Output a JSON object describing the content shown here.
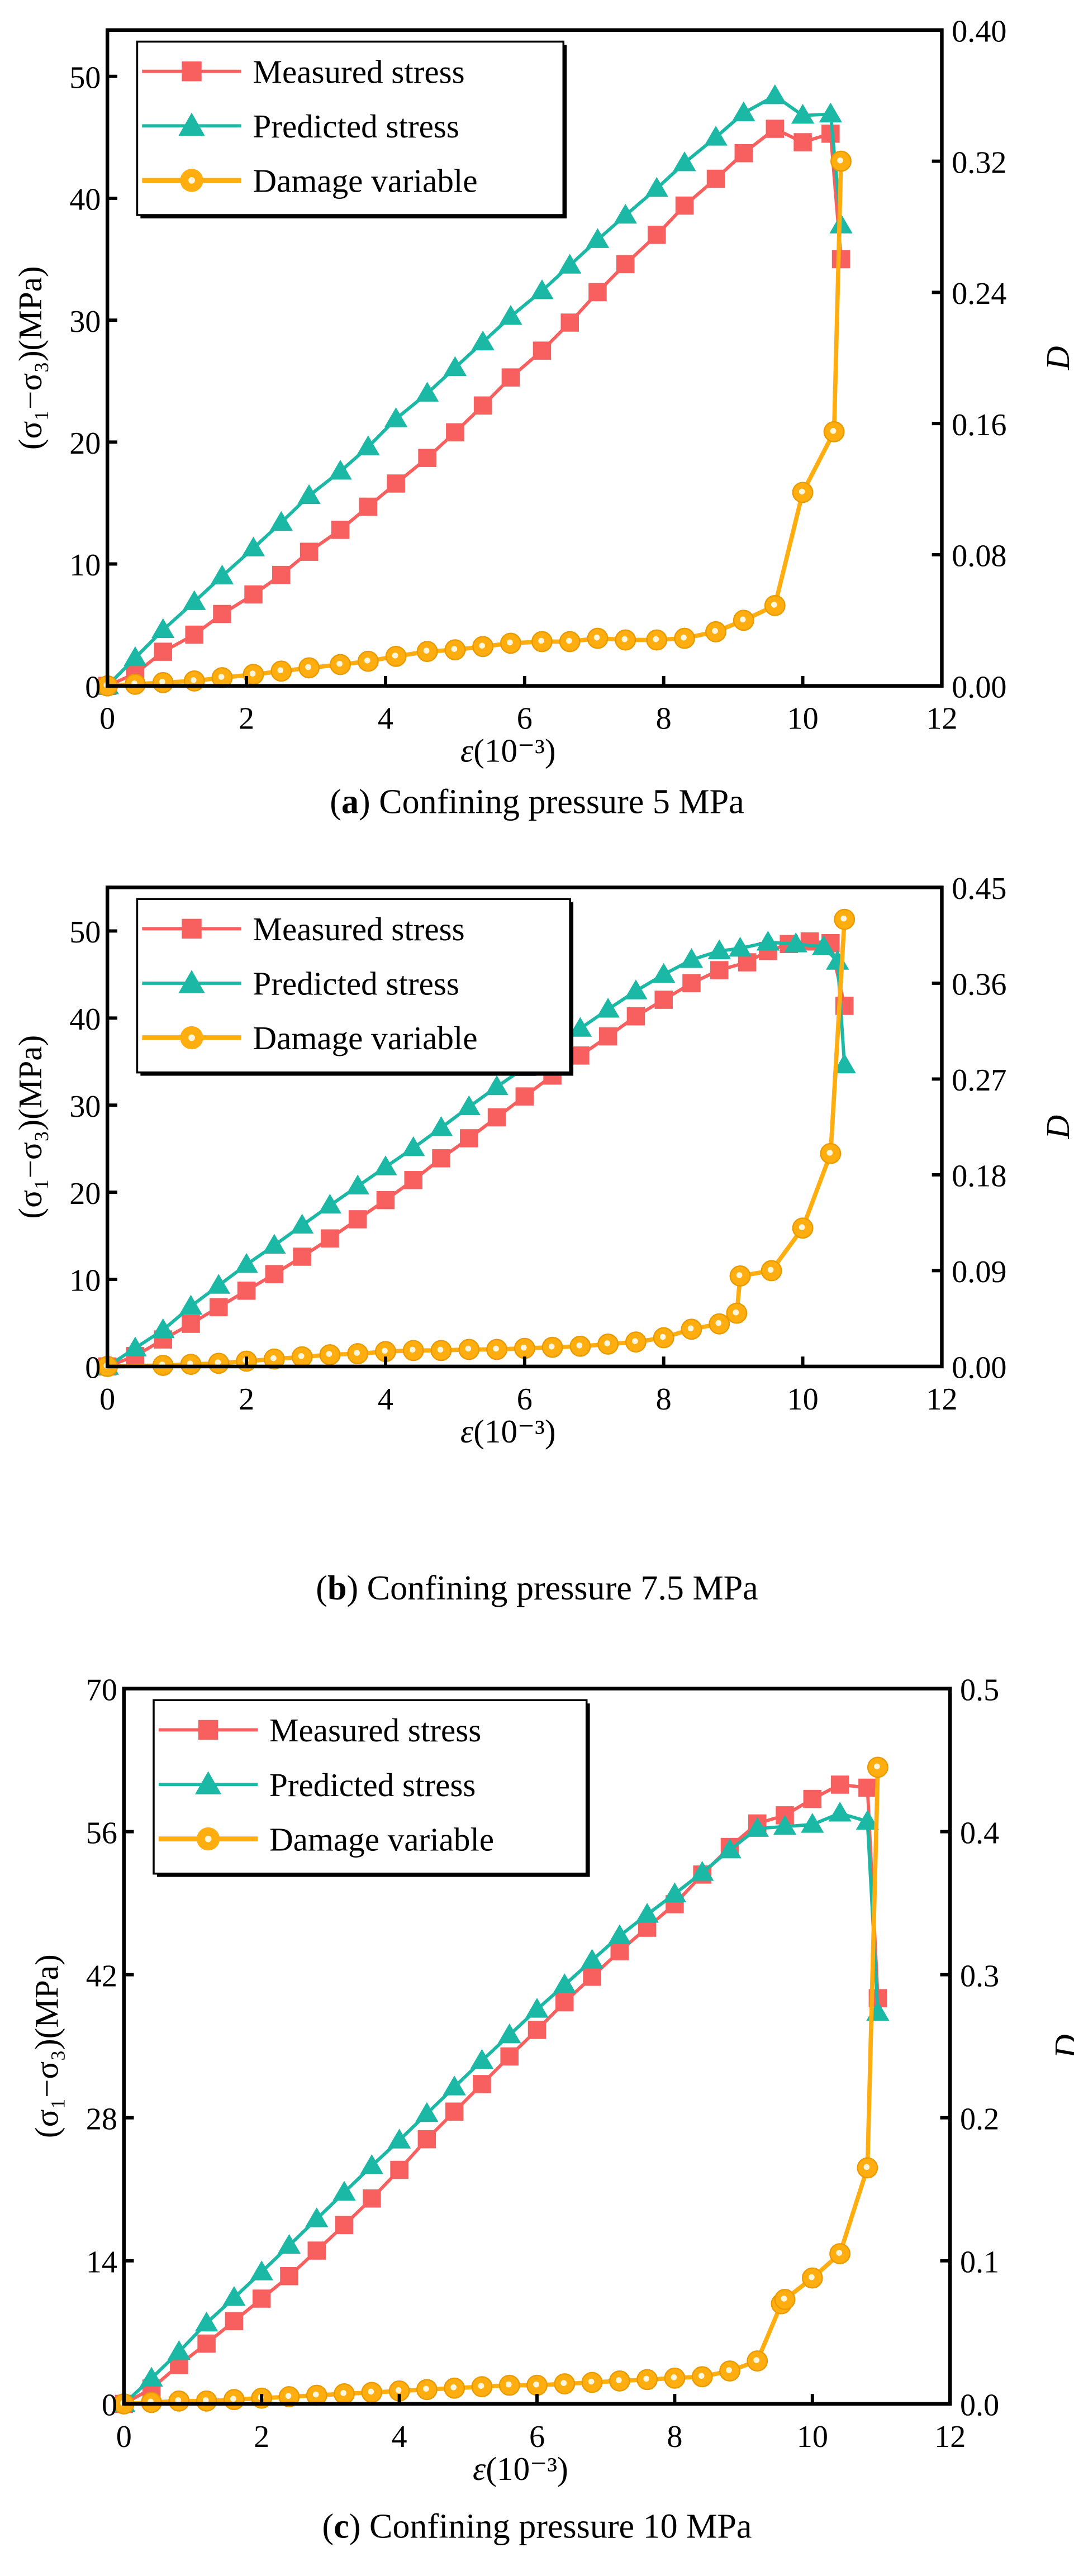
{
  "colors": {
    "measured": "#f8605f",
    "predicted": "#1cb8a6",
    "damage": "#ffad0f"
  },
  "chart_data": [
    {
      "type": "line",
      "caption_prefix": "(",
      "caption_letter": "a",
      "caption_rest": ") Confining pressure 5 MPa",
      "xlabel_sym": "ε",
      "xlabel_unit": "(10⁻³)",
      "ylabel": "(σ₁−σ₃)(MPa)",
      "y2label": "D",
      "xlim": [
        0,
        12
      ],
      "ylim": [
        0,
        53.8
      ],
      "y2lim": [
        0,
        0.4
      ],
      "xticks": [
        "0",
        "2",
        "4",
        "6",
        "8",
        "10",
        "12"
      ],
      "yticks": [
        "0",
        "10",
        "20",
        "30",
        "40",
        "50"
      ],
      "y2ticks": [
        "0.00",
        "0.08",
        "0.16",
        "0.24",
        "0.32",
        "0.40"
      ],
      "legend": [
        "Measured stress",
        "Predicted stress",
        "Damage variable"
      ],
      "legend_position": "top-left",
      "series": [
        {
          "name": "Measured stress",
          "axis": "left",
          "x": [
            0,
            0.4,
            0.8,
            1.25,
            1.65,
            2.1,
            2.5,
            2.9,
            3.35,
            3.75,
            4.15,
            4.6,
            5,
            5.4,
            5.8,
            6.25,
            6.65,
            7.05,
            7.45,
            7.9,
            8.3,
            8.75,
            9.15,
            9.6,
            10,
            10.4,
            10.55
          ],
          "y": [
            0,
            1,
            2.8,
            4.2,
            5.9,
            7.5,
            9.1,
            11,
            12.8,
            14.7,
            16.6,
            18.7,
            20.8,
            23,
            25.3,
            27.5,
            29.8,
            32.3,
            34.6,
            37,
            39.4,
            41.6,
            43.7,
            45.7,
            44.6,
            45.3,
            35
          ]
        },
        {
          "name": "Predicted stress",
          "axis": "left",
          "x": [
            0,
            0.4,
            0.8,
            1.25,
            1.65,
            2.1,
            2.5,
            2.9,
            3.35,
            3.75,
            4.15,
            4.6,
            5,
            5.4,
            5.8,
            6.25,
            6.65,
            7.05,
            7.45,
            7.9,
            8.3,
            8.75,
            9.15,
            9.6,
            10,
            10.4,
            10.55
          ],
          "y": [
            0,
            2.3,
            4.6,
            6.9,
            9,
            11.3,
            13.4,
            15.6,
            17.6,
            19.6,
            21.9,
            24,
            26.1,
            28.2,
            30.3,
            32.4,
            34.5,
            36.6,
            38.6,
            40.8,
            42.9,
            45,
            47,
            48.4,
            46.8,
            46.9,
            37.8
          ]
        },
        {
          "name": "Damage variable",
          "axis": "right",
          "x": [
            0,
            0.4,
            0.8,
            1.25,
            1.65,
            2.1,
            2.5,
            2.9,
            3.35,
            3.75,
            4.15,
            4.6,
            5,
            5.4,
            5.8,
            6.25,
            6.65,
            7.05,
            7.45,
            7.9,
            8.3,
            8.75,
            9.15,
            9.6,
            10,
            10.45,
            10.55
          ],
          "y": [
            0,
            0.001,
            0.002,
            0.003,
            0.005,
            0.007,
            0.009,
            0.011,
            0.013,
            0.015,
            0.018,
            0.021,
            0.022,
            0.024,
            0.026,
            0.027,
            0.027,
            0.029,
            0.028,
            0.028,
            0.029,
            0.033,
            0.04,
            0.049,
            0.118,
            0.155,
            0.32
          ]
        }
      ]
    },
    {
      "type": "line",
      "caption_prefix": "(",
      "caption_letter": "b",
      "caption_rest": ") Confining pressure 7.5 MPa",
      "xlabel_sym": "ε",
      "xlabel_unit": "(10⁻³)",
      "ylabel": "(σ₁−σ₃)(MPa)",
      "y2label": "D",
      "xlim": [
        0,
        12
      ],
      "ylim": [
        0,
        55
      ],
      "y2lim": [
        0,
        0.45
      ],
      "xticks": [
        "0",
        "2",
        "4",
        "6",
        "8",
        "10",
        "12"
      ],
      "yticks": [
        "0",
        "10",
        "20",
        "30",
        "40",
        "50"
      ],
      "y2ticks": [
        "0.00",
        "0.09",
        "0.18",
        "0.27",
        "0.36",
        "0.45"
      ],
      "legend": [
        "Measured stress",
        "Predicted stress",
        "Damage variable"
      ],
      "legend_position": "top-left",
      "series": [
        {
          "name": "Measured stress",
          "axis": "left",
          "x": [
            0,
            0.4,
            0.8,
            1.2,
            1.6,
            2,
            2.4,
            2.8,
            3.2,
            3.6,
            4,
            4.4,
            4.8,
            5.2,
            5.6,
            6,
            6.4,
            6.8,
            7.2,
            7.6,
            8,
            8.4,
            8.8,
            9.2,
            9.5,
            9.8,
            10.1,
            10.4,
            10.6
          ],
          "y": [
            0,
            1.2,
            3.1,
            4.9,
            6.8,
            8.7,
            10.6,
            12.6,
            14.7,
            16.9,
            19.1,
            21.4,
            23.9,
            26.2,
            28.6,
            31,
            33.4,
            35.7,
            37.9,
            40.2,
            42.1,
            44,
            45.5,
            46.4,
            47.7,
            48.5,
            48.8,
            48.6,
            41.4
          ]
        },
        {
          "name": "Predicted stress",
          "axis": "left",
          "x": [
            0,
            0.4,
            0.8,
            1.2,
            1.6,
            2,
            2.4,
            2.8,
            3.2,
            3.6,
            4,
            4.4,
            4.8,
            5.2,
            5.6,
            6,
            6.4,
            6.8,
            7.2,
            7.6,
            8,
            8.4,
            8.8,
            9.1,
            9.5,
            9.9,
            10.3,
            10.5,
            10.6
          ],
          "y": [
            0,
            2.1,
            4.2,
            6.9,
            9.3,
            11.7,
            13.9,
            16.2,
            18.5,
            20.7,
            22.9,
            25.1,
            27.4,
            29.8,
            32.1,
            34.3,
            36.5,
            38.8,
            41,
            43.1,
            45,
            46.7,
            47.7,
            48,
            48.7,
            48.5,
            48.2,
            46.5,
            34.6
          ]
        },
        {
          "name": "Damage variable",
          "axis": "right",
          "x": [
            0,
            0.8,
            1.2,
            1.6,
            2,
            2.4,
            2.8,
            3.2,
            3.6,
            4,
            4.4,
            4.8,
            5.2,
            5.6,
            6,
            6.4,
            6.8,
            7.2,
            7.6,
            8,
            8.4,
            8.8,
            9.05,
            9.1,
            9.55,
            10,
            10.4,
            10.6
          ],
          "y": [
            0,
            0.001,
            0.002,
            0.003,
            0.005,
            0.007,
            0.009,
            0.011,
            0.012,
            0.014,
            0.015,
            0.015,
            0.016,
            0.016,
            0.017,
            0.018,
            0.019,
            0.021,
            0.023,
            0.027,
            0.035,
            0.04,
            0.05,
            0.085,
            0.09,
            0.13,
            0.2,
            0.42
          ]
        }
      ]
    },
    {
      "type": "line",
      "caption_prefix": "(",
      "caption_letter": "c",
      "caption_rest": ") Confining pressure 10 MPa",
      "xlabel_sym": "ε",
      "xlabel_unit": "(10⁻³)",
      "ylabel": "(σ₁−σ₃)(MPa)",
      "y2label": "D",
      "xlim": [
        0,
        12
      ],
      "ylim": [
        0,
        70
      ],
      "y2lim": [
        0,
        0.5
      ],
      "xticks": [
        "0",
        "2",
        "4",
        "6",
        "8",
        "10",
        "12"
      ],
      "yticks": [
        "0",
        "14",
        "28",
        "42",
        "56",
        "70"
      ],
      "y2ticks": [
        "0.0",
        "0.1",
        "0.2",
        "0.3",
        "0.4",
        "0.5"
      ],
      "legend": [
        "Measured stress",
        "Predicted stress",
        "Damage variable"
      ],
      "legend_position": "top-left",
      "series": [
        {
          "name": "Measured stress",
          "axis": "left",
          "x": [
            0,
            0.4,
            0.8,
            1.2,
            1.6,
            2,
            2.4,
            2.8,
            3.2,
            3.6,
            4,
            4.4,
            4.8,
            5.2,
            5.6,
            6,
            6.4,
            6.8,
            7.2,
            7.6,
            8,
            8.4,
            8.8,
            9.2,
            9.6,
            10,
            10.4,
            10.8,
            10.95
          ],
          "y": [
            0,
            1.5,
            3.8,
            5.9,
            8.1,
            10.3,
            12.5,
            15,
            17.5,
            20.1,
            22.9,
            25.9,
            28.6,
            31.3,
            34,
            36.6,
            39.3,
            41.8,
            44.3,
            46.6,
            48.9,
            51.8,
            54.5,
            56.8,
            57.6,
            59.2,
            60.6,
            60.3,
            39.7
          ]
        },
        {
          "name": "Predicted stress",
          "axis": "left",
          "x": [
            0,
            0.4,
            0.8,
            1.2,
            1.6,
            2,
            2.4,
            2.8,
            3.2,
            3.6,
            4,
            4.4,
            4.8,
            5.2,
            5.6,
            6,
            6.4,
            6.8,
            7.2,
            7.6,
            8,
            8.4,
            8.8,
            9.2,
            9.6,
            10,
            10.4,
            10.8,
            10.95
          ],
          "y": [
            0,
            2.5,
            5.1,
            7.9,
            10.4,
            12.9,
            15.5,
            18.1,
            20.7,
            23.3,
            25.8,
            28.4,
            31,
            33.6,
            36.1,
            38.6,
            41,
            43.4,
            45.8,
            47.9,
            49.9,
            52,
            54.2,
            56.3,
            56.5,
            56.7,
            57.8,
            57,
            38.3
          ]
        },
        {
          "name": "Damage variable",
          "axis": "right",
          "x": [
            0,
            0.4,
            0.8,
            1.2,
            1.6,
            2,
            2.4,
            2.8,
            3.2,
            3.6,
            4,
            4.4,
            4.8,
            5.2,
            5.6,
            6,
            6.4,
            6.8,
            7.2,
            7.6,
            8,
            8.4,
            8.8,
            9.2,
            9.55,
            9.6,
            10,
            10.4,
            10.8,
            10.95
          ],
          "y": [
            0,
            0.001,
            0.002,
            0.002,
            0.003,
            0.004,
            0.005,
            0.006,
            0.007,
            0.008,
            0.009,
            0.01,
            0.011,
            0.012,
            0.013,
            0.013,
            0.014,
            0.015,
            0.016,
            0.017,
            0.018,
            0.019,
            0.023,
            0.03,
            0.07,
            0.073,
            0.088,
            0.105,
            0.165,
            0.445
          ]
        }
      ]
    }
  ]
}
